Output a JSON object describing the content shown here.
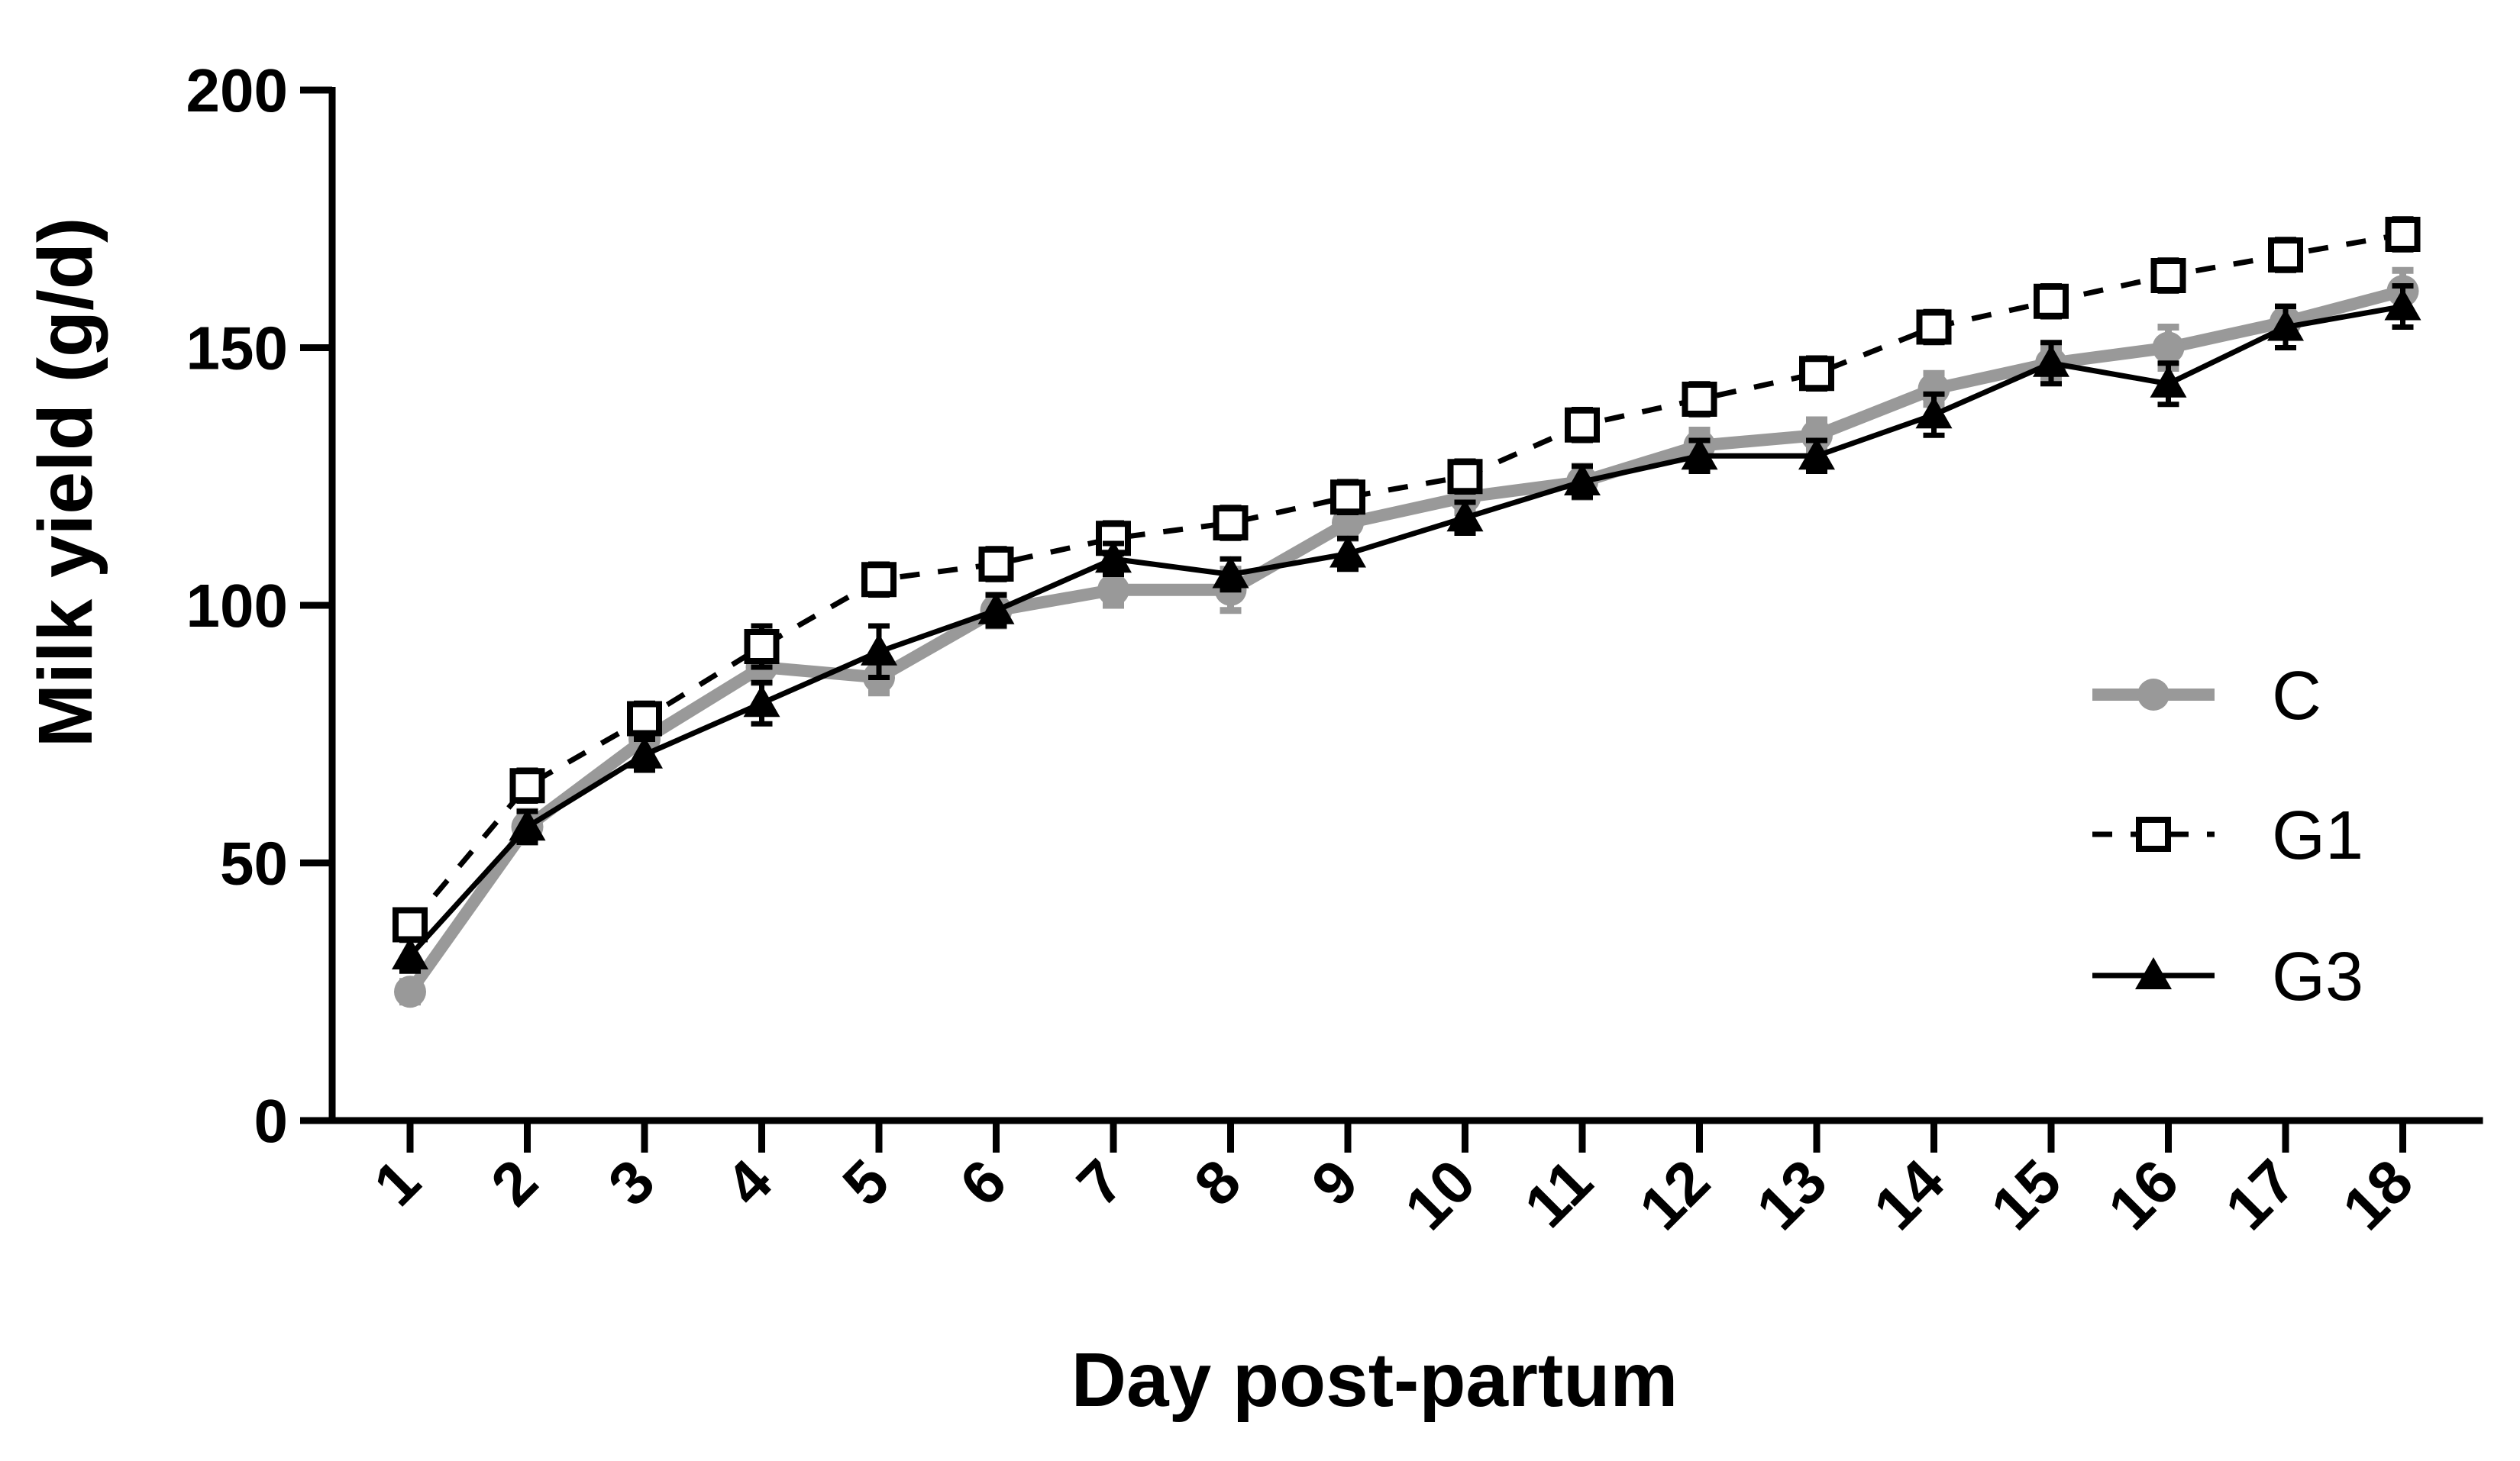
{
  "chart_data": {
    "type": "line",
    "xlabel": "Day post-partum",
    "ylabel": "Milk yield (g/d)",
    "x": [
      1,
      2,
      3,
      4,
      5,
      6,
      7,
      8,
      9,
      10,
      11,
      12,
      13,
      14,
      15,
      16,
      17,
      18
    ],
    "x_tick_labels": [
      "1",
      "2",
      "3",
      "4",
      "5",
      "6",
      "7",
      "8",
      "9",
      "10",
      "11",
      "12",
      "13",
      "14",
      "15",
      "16",
      "17",
      "18"
    ],
    "ylim": [
      0,
      200
    ],
    "y_ticks": [
      0,
      50,
      100,
      150,
      200
    ],
    "y_tick_labels": [
      "0",
      "50",
      "100",
      "150",
      "200"
    ],
    "grid": false,
    "legend_position": "right",
    "series": [
      {
        "name": "C",
        "color": "#999999",
        "line_style": "solid",
        "marker": "circle",
        "values": [
          25,
          57,
          74,
          88,
          86,
          99,
          103,
          103,
          116,
          121,
          124,
          131,
          133,
          142,
          147,
          150,
          155,
          161
        ],
        "errors": [
          2,
          3,
          3,
          3,
          3,
          3,
          3,
          4,
          3,
          3,
          3,
          3,
          3,
          3,
          3,
          4,
          3,
          4
        ]
      },
      {
        "name": "G1",
        "color": "#000000",
        "line_style": "dashed",
        "marker": "open-square",
        "values": [
          38,
          65,
          78,
          92,
          105,
          108,
          113,
          116,
          121,
          125,
          135,
          140,
          145,
          154,
          159,
          164,
          168,
          172
        ],
        "errors": [
          2,
          3,
          3,
          4,
          3,
          3,
          3,
          3,
          3,
          3,
          3,
          3,
          3,
          3,
          3,
          3,
          3,
          3
        ]
      },
      {
        "name": "G3",
        "color": "#000000",
        "line_style": "solid",
        "marker": "filled-triangle",
        "values": [
          32,
          57,
          71,
          81,
          91,
          99,
          109,
          106,
          110,
          117,
          124,
          129,
          129,
          137,
          147,
          143,
          154,
          158
        ],
        "errors": [
          3,
          3,
          3,
          4,
          5,
          3,
          3,
          3,
          3,
          3,
          3,
          3,
          3,
          4,
          4,
          4,
          4,
          4
        ]
      }
    ]
  }
}
